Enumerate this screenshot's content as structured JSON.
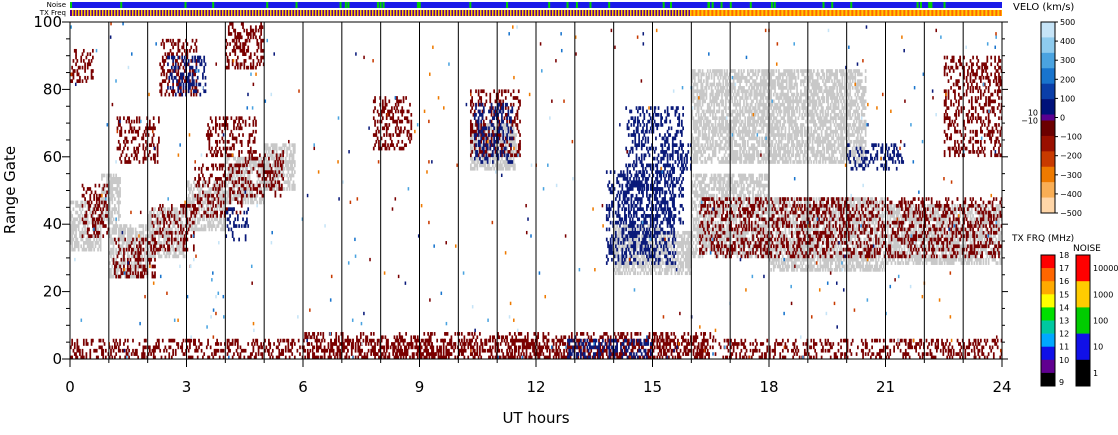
{
  "chart_data": {
    "type": "heatmap",
    "title": "",
    "xlabel": "UT hours",
    "ylabel": "Range Gate",
    "xlim": [
      0,
      24
    ],
    "ylim": [
      0,
      100
    ],
    "x_ticks": [
      "0",
      "3",
      "6",
      "9",
      "12",
      "15",
      "18",
      "21",
      "24"
    ],
    "y_ticks": [
      "0",
      "20",
      "40",
      "60",
      "80",
      "100"
    ],
    "strip_labels": {
      "noise": "Noise",
      "freq": "TX Freq"
    },
    "strip_change_hour": 16,
    "velocity_scale": {
      "label": "VELO (km/s)",
      "ticks": [
        "500",
        "400",
        "300",
        "200",
        "100",
        "0",
        "−100",
        "−200",
        "−300",
        "−400",
        "−500"
      ],
      "inner_ticks": [
        "10",
        "−10"
      ],
      "colors_positive": [
        "#c6e4f7",
        "#8ecbee",
        "#4aa3e0",
        "#1874cd",
        "#0a3ea8",
        "#00117a"
      ],
      "colors_negative": [
        "#6b0000",
        "#9a1000",
        "#c83a00",
        "#ee7a00",
        "#f9ae55",
        "#ffd6a8"
      ]
    },
    "freq_scale": {
      "label": "TX FRQ (MHz)",
      "ticks": [
        "18",
        "17",
        "16",
        "15",
        "14",
        "13",
        "12",
        "11",
        "10",
        "9"
      ],
      "colors": [
        "#ff0000",
        "#ff6600",
        "#ffaa00",
        "#ffff00",
        "#00e000",
        "#00c8a0",
        "#00a8ff",
        "#1010e8",
        "#600090",
        "#000000"
      ]
    },
    "noise_scale": {
      "label": "NOISE",
      "ticks": [
        "10000",
        "1000",
        "100",
        "10",
        "1"
      ],
      "colors": [
        "#ff0000",
        "#ffcc00",
        "#00cc00",
        "#1010e8",
        "#000000"
      ]
    },
    "series_colors": {
      "ground_scatter": "#c8c8c8",
      "positive": "#0a1a7a",
      "negative": "#7a0000"
    },
    "ground_scatter_bands": [
      {
        "x": [
          0.0,
          0.8
        ],
        "y": [
          32,
          47
        ]
      },
      {
        "x": [
          0.8,
          1.3
        ],
        "y": [
          40,
          55
        ]
      },
      {
        "x": [
          1.0,
          2.0
        ],
        "y": [
          24,
          40
        ]
      },
      {
        "x": [
          2.0,
          3.0
        ],
        "y": [
          30,
          45
        ]
      },
      {
        "x": [
          3.0,
          4.0
        ],
        "y": [
          38,
          53
        ]
      },
      {
        "x": [
          4.0,
          5.0
        ],
        "y": [
          46,
          60
        ]
      },
      {
        "x": [
          5.0,
          5.8
        ],
        "y": [
          50,
          64
        ]
      },
      {
        "x": [
          10.3,
          11.5
        ],
        "y": [
          56,
          70
        ]
      },
      {
        "x": [
          14.0,
          15.2
        ],
        "y": [
          25,
          40
        ]
      },
      {
        "x": [
          15.2,
          16.0
        ],
        "y": [
          25,
          38
        ]
      },
      {
        "x": [
          16.0,
          18.0
        ],
        "y": [
          30,
          55
        ]
      },
      {
        "x": [
          18.0,
          21.0
        ],
        "y": [
          26,
          48
        ]
      },
      {
        "x": [
          21.0,
          24.0
        ],
        "y": [
          28,
          46
        ]
      },
      {
        "x": [
          16.0,
          20.5
        ],
        "y": [
          58,
          86
        ]
      }
    ],
    "negative_bands": [
      {
        "x": [
          0.0,
          0.6
        ],
        "y": [
          82,
          92
        ]
      },
      {
        "x": [
          0.3,
          1.0
        ],
        "y": [
          36,
          52
        ]
      },
      {
        "x": [
          1.1,
          2.2
        ],
        "y": [
          24,
          36
        ]
      },
      {
        "x": [
          1.2,
          2.3
        ],
        "y": [
          58,
          72
        ]
      },
      {
        "x": [
          2.1,
          3.2
        ],
        "y": [
          32,
          46
        ]
      },
      {
        "x": [
          2.3,
          3.3
        ],
        "y": [
          78,
          95
        ]
      },
      {
        "x": [
          3.2,
          4.5
        ],
        "y": [
          42,
          58
        ]
      },
      {
        "x": [
          3.5,
          4.8
        ],
        "y": [
          60,
          72
        ]
      },
      {
        "x": [
          4.0,
          5.0
        ],
        "y": [
          86,
          100
        ]
      },
      {
        "x": [
          4.5,
          5.5
        ],
        "y": [
          48,
          62
        ]
      },
      {
        "x": [
          7.8,
          8.8
        ],
        "y": [
          62,
          78
        ]
      },
      {
        "x": [
          10.3,
          11.6
        ],
        "y": [
          60,
          80
        ]
      },
      {
        "x": [
          16.2,
          24.0
        ],
        "y": [
          30,
          48
        ]
      },
      {
        "x": [
          22.5,
          24.0
        ],
        "y": [
          60,
          90
        ]
      },
      {
        "x": [
          0.0,
          24.0
        ],
        "y": [
          0,
          6
        ]
      },
      {
        "x": [
          6.0,
          16.5
        ],
        "y": [
          0,
          8
        ]
      }
    ],
    "positive_bands": [
      {
        "x": [
          13.8,
          15.6
        ],
        "y": [
          28,
          56
        ]
      },
      {
        "x": [
          14.3,
          15.8
        ],
        "y": [
          40,
          75
        ]
      },
      {
        "x": [
          15.2,
          16.0
        ],
        "y": [
          56,
          64
        ]
      },
      {
        "x": [
          10.4,
          11.4
        ],
        "y": [
          58,
          76
        ]
      },
      {
        "x": [
          2.5,
          3.5
        ],
        "y": [
          78,
          90
        ]
      },
      {
        "x": [
          4.0,
          4.6
        ],
        "y": [
          35,
          45
        ]
      },
      {
        "x": [
          12.8,
          15.0
        ],
        "y": [
          0,
          6
        ]
      },
      {
        "x": [
          20.0,
          21.5
        ],
        "y": [
          56,
          64
        ]
      }
    ]
  }
}
